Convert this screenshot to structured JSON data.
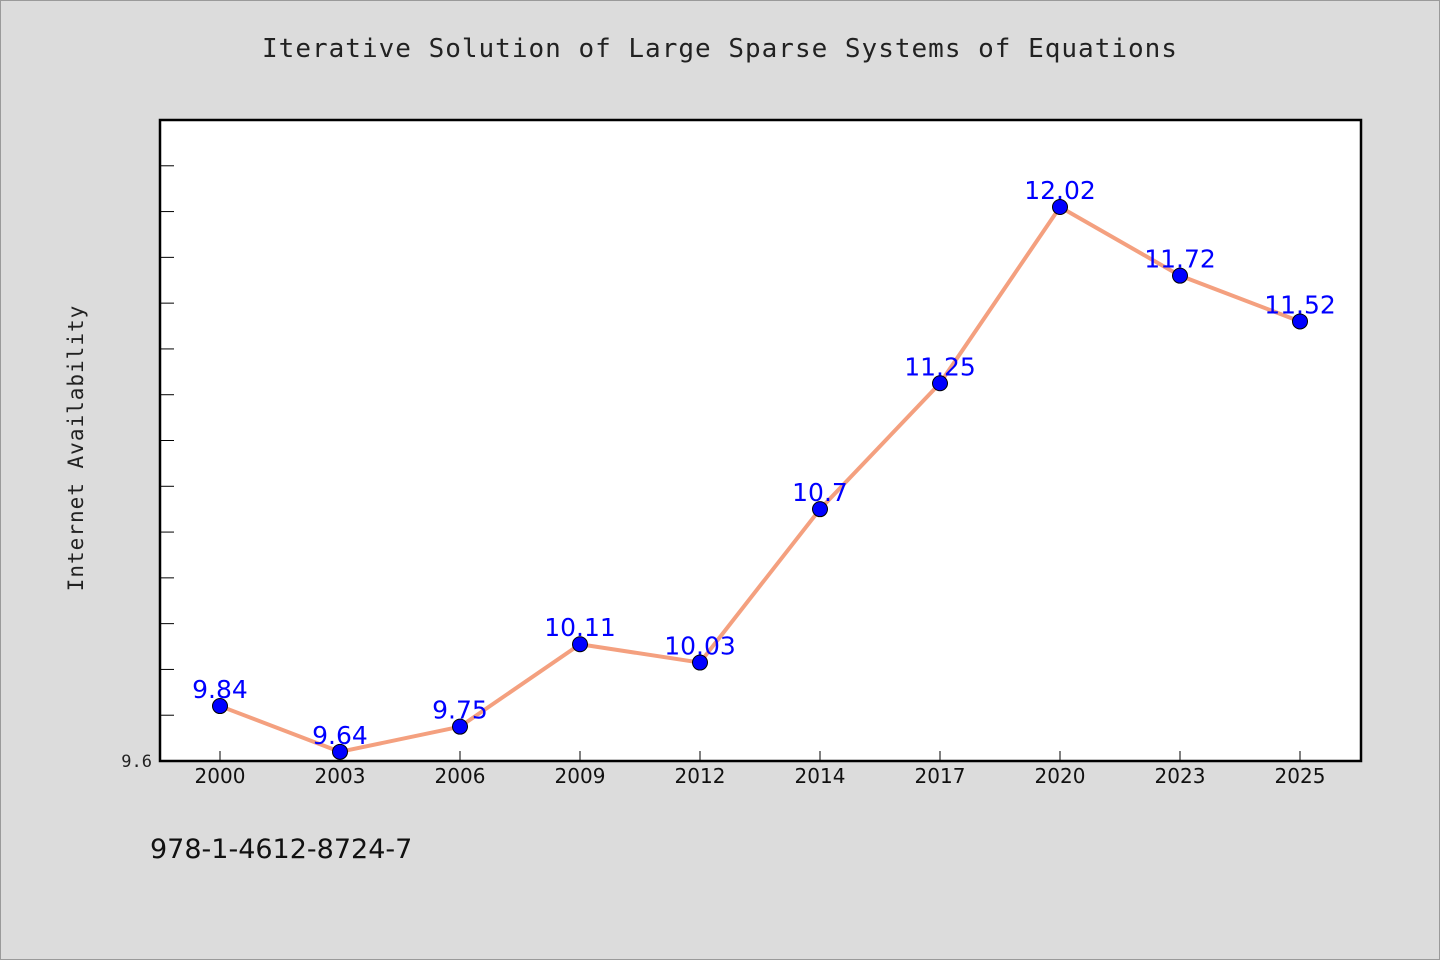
{
  "figure": {
    "title": "Iterative Solution of Large Sparse Systems of Equations",
    "ylabel": "Internet Availability",
    "footer_text": "978-1-4612-8724-7",
    "background_color": "#dcdcdc",
    "plot_background": "#ffffff"
  },
  "chart_data": {
    "type": "line",
    "title": "Iterative Solution of Large Sparse Systems of Equations",
    "xlabel": "",
    "ylabel": "Internet Availability",
    "categories": [
      "2000",
      "2003",
      "2006",
      "2009",
      "2012",
      "2014",
      "2017",
      "2020",
      "2023",
      "2025"
    ],
    "series": [
      {
        "values": [
          9.84,
          9.64,
          9.75,
          10.11,
          10.03,
          10.7,
          11.25,
          12.02,
          11.72,
          11.52
        ],
        "line_color": "#f4a07f",
        "marker_color": "#0000ff",
        "label_color": "#0000ff"
      }
    ],
    "y_tick_label": "9.6",
    "ylim": [
      9.6,
      12.4
    ],
    "data_labels": true,
    "grid": false
  }
}
